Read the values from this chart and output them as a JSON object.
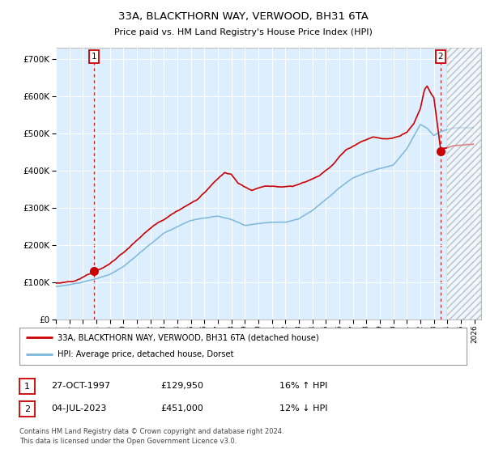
{
  "title1": "33A, BLACKTHORN WAY, VERWOOD, BH31 6TA",
  "title2": "Price paid vs. HM Land Registry's House Price Index (HPI)",
  "legend_line1": "33A, BLACKTHORN WAY, VERWOOD, BH31 6TA (detached house)",
  "legend_line2": "HPI: Average price, detached house, Dorset",
  "sale1_label": "1",
  "sale1_date": "27-OCT-1997",
  "sale1_price": "£129,950",
  "sale1_hpi": "16% ↑ HPI",
  "sale1_t": 1997.833,
  "sale1_v": 129950,
  "sale2_label": "2",
  "sale2_date": "04-JUL-2023",
  "sale2_price": "£451,000",
  "sale2_hpi": "12% ↓ HPI",
  "sale2_t": 2023.5,
  "sale2_v": 451000,
  "footnote": "Contains HM Land Registry data © Crown copyright and database right 2024.\nThis data is licensed under the Open Government Licence v3.0.",
  "hpi_color": "#7ab8d9",
  "price_color": "#cc0000",
  "bg_color": "#ddeeff",
  "future_start": 2024.0,
  "xlim": [
    1995.0,
    2026.5
  ],
  "ylim": [
    0,
    730000
  ],
  "yticks": [
    0,
    100000,
    200000,
    300000,
    400000,
    500000,
    600000,
    700000
  ],
  "ytick_labels": [
    "£0",
    "£100K",
    "£200K",
    "£300K",
    "£400K",
    "£500K",
    "£600K",
    "£700K"
  ],
  "xtick_years": [
    1995,
    1996,
    1997,
    1998,
    1999,
    2000,
    2001,
    2002,
    2003,
    2004,
    2005,
    2006,
    2007,
    2008,
    2009,
    2010,
    2011,
    2012,
    2013,
    2014,
    2015,
    2016,
    2017,
    2018,
    2019,
    2020,
    2021,
    2022,
    2023,
    2024,
    2025,
    2026
  ],
  "hpi_keypoints_t": [
    1995.0,
    1996.0,
    1997.0,
    1998.0,
    1999.0,
    2000.0,
    2001.0,
    2002.0,
    2003.0,
    2004.0,
    2005.0,
    2006.0,
    2007.0,
    2008.0,
    2009.0,
    2010.0,
    2011.0,
    2012.0,
    2013.0,
    2014.0,
    2015.0,
    2016.0,
    2017.0,
    2018.0,
    2019.0,
    2020.0,
    2021.0,
    2022.0,
    2022.5,
    2023.0,
    2023.5,
    2024.0,
    2024.5,
    2025.0,
    2025.5,
    2026.0
  ],
  "hpi_keypoints_v": [
    88000,
    93000,
    100000,
    108000,
    120000,
    140000,
    170000,
    200000,
    230000,
    248000,
    265000,
    270000,
    275000,
    265000,
    250000,
    255000,
    258000,
    258000,
    268000,
    290000,
    320000,
    352000,
    378000,
    393000,
    403000,
    412000,
    455000,
    520000,
    510000,
    490000,
    500000,
    505000,
    510000,
    510000,
    510000,
    510000
  ],
  "price_keypoints_t": [
    1995.0,
    1996.5,
    1997.83,
    1999.0,
    2000.5,
    2001.5,
    2002.5,
    2004.0,
    2005.5,
    2007.0,
    2007.5,
    2008.0,
    2008.5,
    2009.5,
    2010.5,
    2011.5,
    2012.5,
    2013.5,
    2014.5,
    2015.5,
    2016.5,
    2017.5,
    2018.5,
    2019.5,
    2020.5,
    2021.0,
    2021.5,
    2022.0,
    2022.3,
    2022.5,
    2022.8,
    2023.0,
    2023.5,
    2024.0,
    2024.5,
    2025.0,
    2025.5,
    2026.0
  ],
  "price_keypoints_v": [
    97000,
    105000,
    129950,
    150000,
    195000,
    230000,
    258000,
    295000,
    325000,
    380000,
    395000,
    390000,
    365000,
    345000,
    355000,
    355000,
    355000,
    368000,
    385000,
    415000,
    455000,
    475000,
    490000,
    485000,
    490000,
    500000,
    520000,
    560000,
    610000,
    620000,
    600000,
    590000,
    451000,
    455000,
    460000,
    462000,
    464000,
    466000
  ]
}
